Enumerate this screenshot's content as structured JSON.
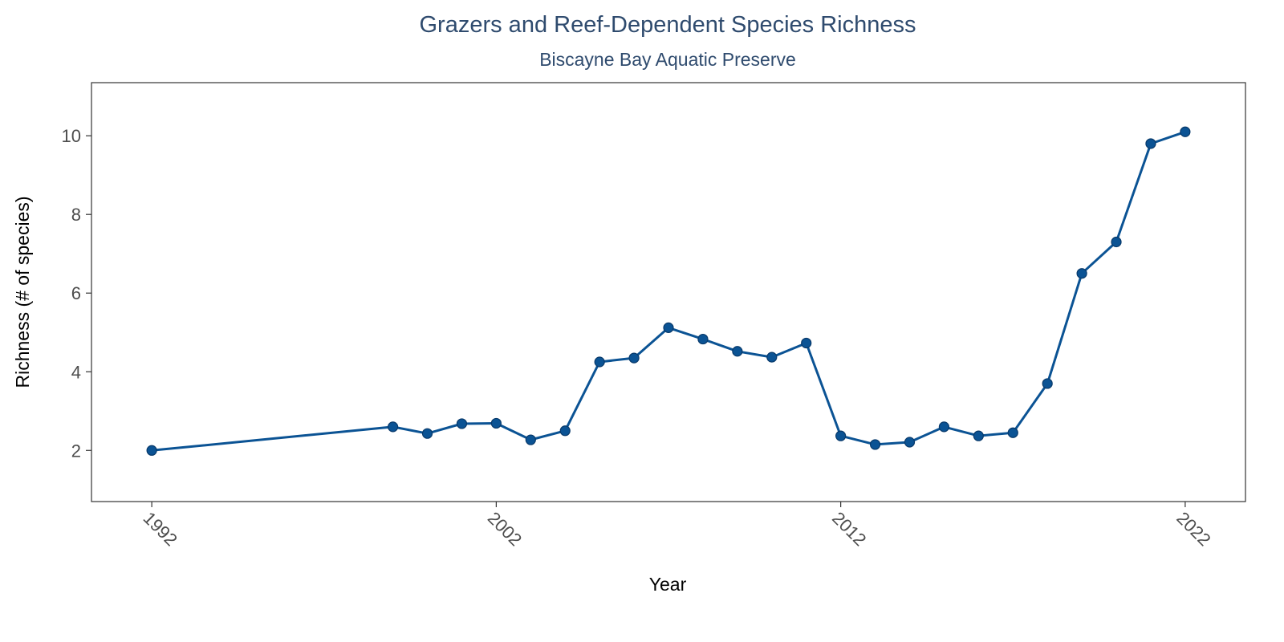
{
  "chart_data": {
    "type": "line",
    "title": "Grazers and Reef-Dependent Species Richness",
    "subtitle": "Biscayne Bay Aquatic Preserve",
    "xlabel": "Year",
    "ylabel": "Richness (# of species)",
    "xlim": [
      1990.25,
      2023.75
    ],
    "ylim": [
      0.7,
      11.35
    ],
    "x_ticks": [
      1992,
      2002,
      2012,
      2022
    ],
    "y_ticks": [
      2,
      4,
      6,
      8,
      10
    ],
    "grid": false,
    "legend": "none",
    "series": [
      {
        "color": "#0b5394",
        "x": [
          1992,
          1999,
          2000,
          2001,
          2002,
          2003,
          2004,
          2005,
          2006,
          2007,
          2008,
          2009,
          2010,
          2011,
          2012,
          2013,
          2014,
          2015,
          2016,
          2017,
          2018,
          2019,
          2020,
          2021,
          2022
        ],
        "y": [
          2.0,
          2.6,
          2.43,
          2.68,
          2.69,
          2.27,
          2.5,
          4.25,
          4.35,
          5.12,
          4.83,
          4.52,
          4.37,
          4.73,
          2.37,
          2.15,
          2.21,
          2.6,
          2.37,
          2.45,
          3.7,
          6.5,
          7.3,
          9.8,
          10.1
        ]
      }
    ]
  }
}
